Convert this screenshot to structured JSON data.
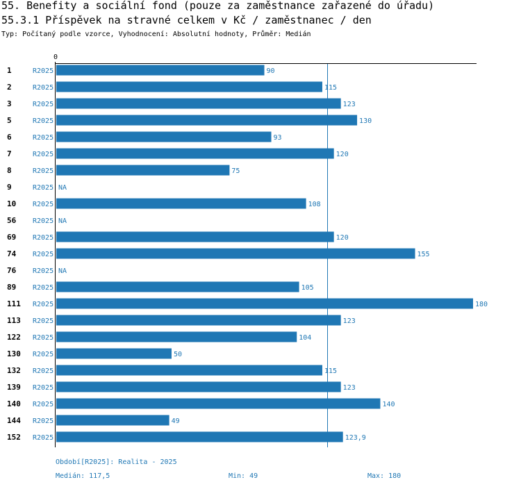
{
  "header": {
    "title": "55. Benefity a sociální fond (pouze za zaměstnance zařazené do úřadu)",
    "subtitle": "55.3.1 Příspěvek na stravné celkem v Kč / zaměstnanec / den",
    "info": "Typ: Počítaný podle vzorce, Vyhodnocení: Absolutní hodnoty, Průměr: Medián"
  },
  "colors": {
    "bar": "#1f77b4",
    "label": "#1f77b4",
    "axis": "#000000",
    "median_line": "#1f77b4"
  },
  "chart_data": {
    "type": "bar",
    "orientation": "horizontal",
    "title": "55.3.1 Příspěvek na stravné celkem v Kč / zaměstnanec / den",
    "xlim": [
      0,
      180
    ],
    "x_tick_labels": [
      "0"
    ],
    "median": 117.5,
    "categories": [
      "1",
      "2",
      "3",
      "5",
      "6",
      "7",
      "8",
      "9",
      "10",
      "56",
      "69",
      "74",
      "76",
      "89",
      "111",
      "113",
      "122",
      "130",
      "132",
      "139",
      "140",
      "144",
      "152"
    ],
    "series": [
      {
        "name": "R2025",
        "values": [
          90,
          115,
          123,
          130,
          93,
          120,
          75,
          null,
          108,
          null,
          120,
          155,
          null,
          105,
          180,
          123,
          104,
          50,
          115,
          123,
          140,
          49,
          123.9
        ],
        "value_labels": [
          "90",
          "115",
          "123",
          "130",
          "93",
          "120",
          "75",
          "NA",
          "108",
          "NA",
          "120",
          "155",
          "NA",
          "105",
          "180",
          "123",
          "104",
          "50",
          "115",
          "123",
          "140",
          "49",
          "123,9"
        ]
      }
    ]
  },
  "footer": {
    "period": "Období[R2025]: Realita - 2025",
    "median": "Medián: 117,5",
    "min": "Min: 49",
    "max": "Max: 180"
  }
}
